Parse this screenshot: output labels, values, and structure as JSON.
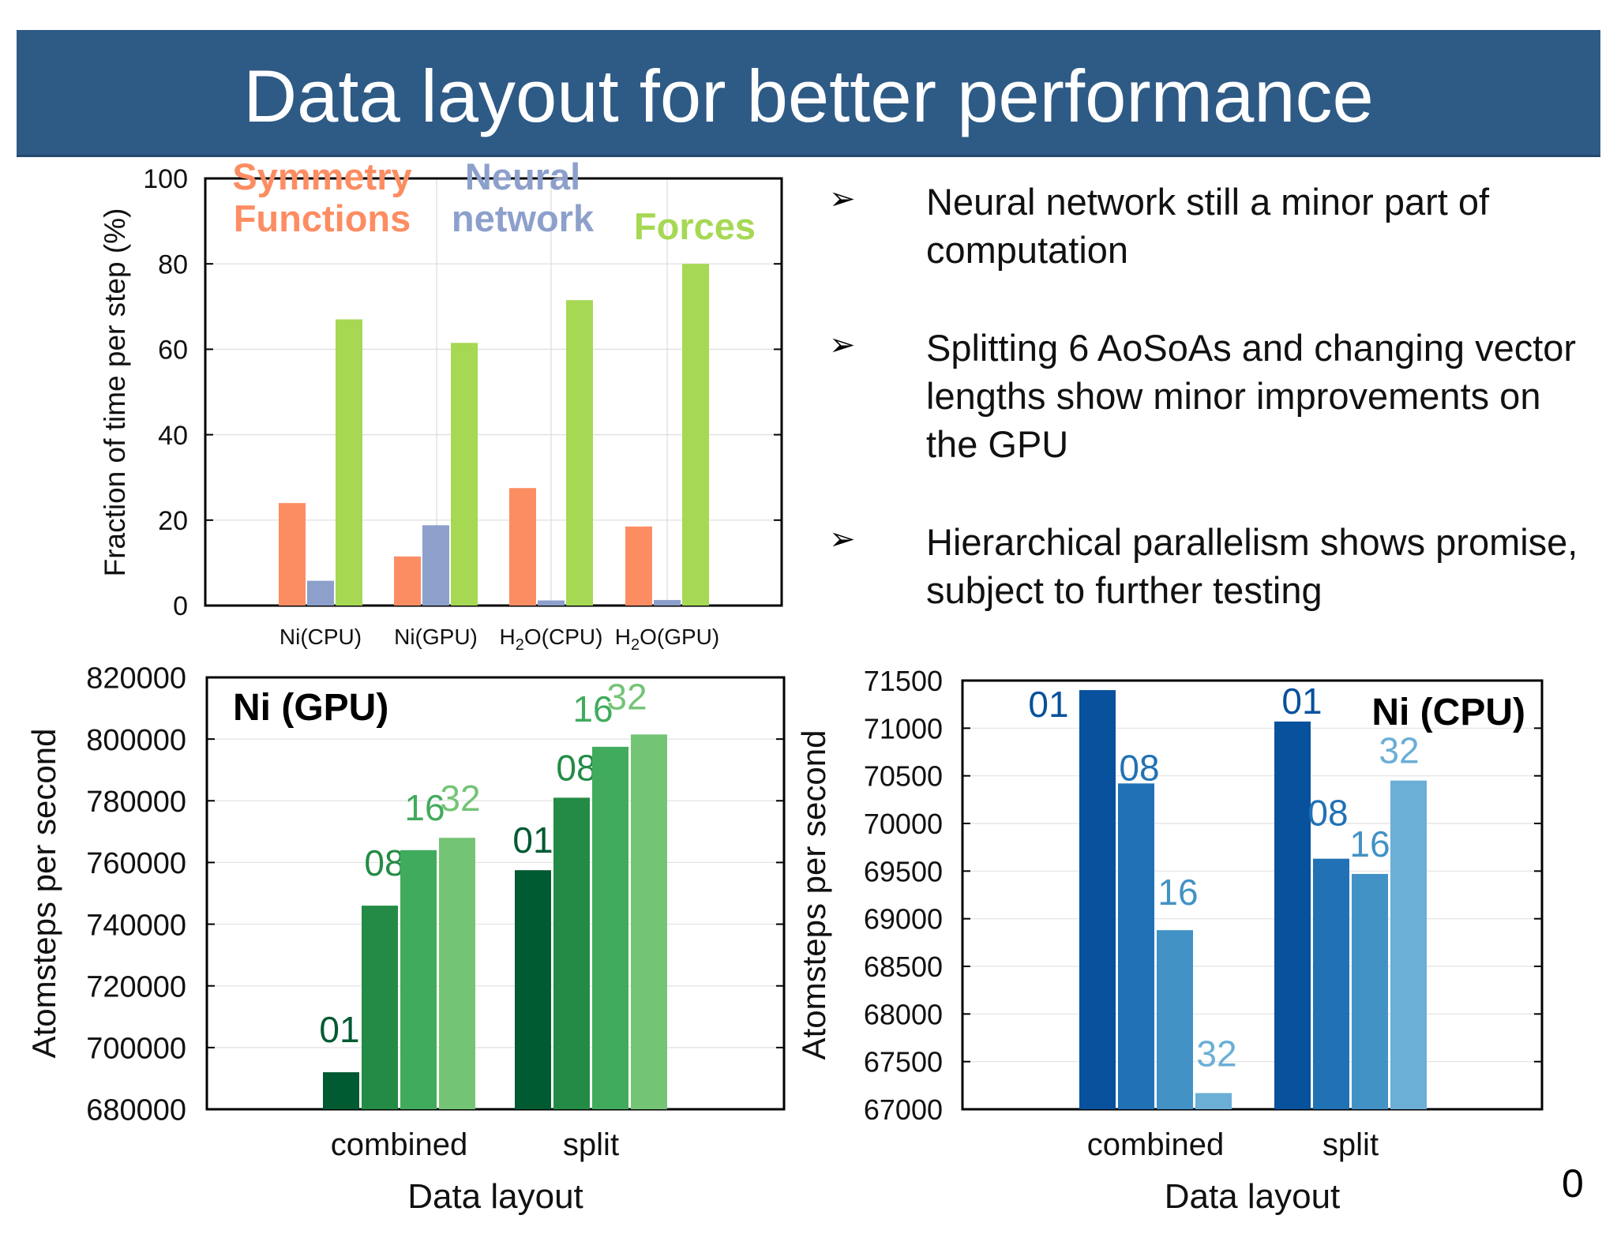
{
  "slide": {
    "title": "Data layout for better performance",
    "page_number": "0"
  },
  "bullets": [
    {
      "marker": "➢",
      "text": "Neural network still a minor part of computation"
    },
    {
      "marker": "➢",
      "text": "Splitting 6 AoSoAs and changing vector lengths show minor improvements on the GPU"
    },
    {
      "marker": "➢",
      "text": "Hierarchical parallelism shows promise, subject to further testing"
    }
  ],
  "colors": {
    "title_bar": "#2e5a86",
    "symmetry": "#fc8d62",
    "neural": "#8da0cb",
    "forces": "#a6d854",
    "green_01": "#005a32",
    "green_08": "#238b45",
    "green_16": "#41ab5d",
    "green_32": "#74c476",
    "blue_01": "#08519c",
    "blue_08": "#2171b5",
    "blue_16": "#4292c6",
    "blue_32": "#6baed6"
  },
  "chart_data": [
    {
      "type": "bar",
      "categories": [
        "Ni(CPU)",
        "Ni(GPU)",
        "H2O(CPU)",
        "H2O(GPU)"
      ],
      "series": [
        {
          "name": "Symmetry Functions",
          "values": [
            24,
            11.5,
            27.5,
            18.5
          ]
        },
        {
          "name": "Neural network",
          "values": [
            5.8,
            18.8,
            1.2,
            1.3
          ]
        },
        {
          "name": "Forces",
          "values": [
            67,
            61.5,
            71.5,
            80
          ]
        }
      ],
      "legend_labels": [
        [
          "Symmetry",
          "Functions"
        ],
        [
          "Neural",
          "network"
        ],
        [
          "Forces"
        ]
      ],
      "xlabel": "",
      "ylabel": "Fraction of time per step (%)",
      "ylim": [
        0,
        100
      ],
      "yticks": [
        0,
        20,
        40,
        60,
        80,
        100
      ],
      "grid": true
    },
    {
      "type": "bar",
      "title": "Ni (GPU)",
      "categories": [
        "combined",
        "split"
      ],
      "series": [
        {
          "name": "01",
          "values": [
            692000,
            757500
          ]
        },
        {
          "name": "08",
          "values": [
            746000,
            781000
          ]
        },
        {
          "name": "16",
          "values": [
            764000,
            797500
          ]
        },
        {
          "name": "32",
          "values": [
            768000,
            801500
          ]
        }
      ],
      "xlabel": "Data layout",
      "ylabel": "Atomsteps per second",
      "ylim": [
        680000,
        820000
      ],
      "yticks": [
        680000,
        700000,
        720000,
        740000,
        760000,
        780000,
        800000,
        820000
      ],
      "grid": true
    },
    {
      "type": "bar",
      "title": "Ni (CPU)",
      "categories": [
        "combined",
        "split"
      ],
      "series": [
        {
          "name": "01",
          "values": [
            71400,
            71070
          ]
        },
        {
          "name": "08",
          "values": [
            70420,
            69630
          ]
        },
        {
          "name": "16",
          "values": [
            68880,
            69470
          ]
        },
        {
          "name": "32",
          "values": [
            67170,
            70450
          ]
        }
      ],
      "xlabel": "Data layout",
      "ylabel": "Atomsteps per second",
      "ylim": [
        67000,
        71500
      ],
      "yticks": [
        67000,
        67500,
        68000,
        68500,
        69000,
        69500,
        70000,
        70500,
        71000,
        71500
      ],
      "grid": true
    }
  ]
}
